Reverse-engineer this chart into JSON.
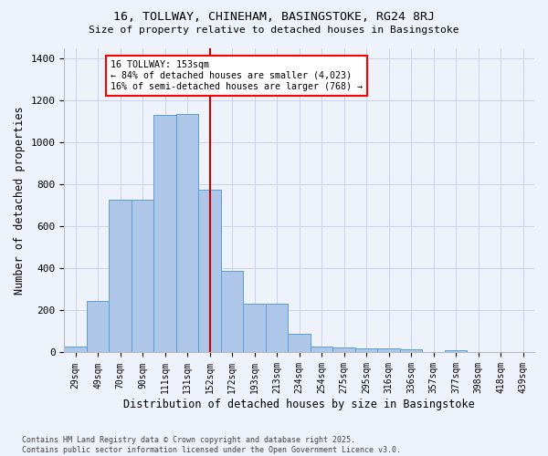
{
  "title1": "16, TOLLWAY, CHINEHAM, BASINGSTOKE, RG24 8RJ",
  "title2": "Size of property relative to detached houses in Basingstoke",
  "xlabel": "Distribution of detached houses by size in Basingstoke",
  "ylabel": "Number of detached properties",
  "footer1": "Contains HM Land Registry data © Crown copyright and database right 2025.",
  "footer2": "Contains public sector information licensed under the Open Government Licence v3.0.",
  "annotation_title": "16 TOLLWAY: 153sqm",
  "annotation_line1": "← 84% of detached houses are smaller (4,023)",
  "annotation_line2": "16% of semi-detached houses are larger (768) →",
  "bar_labels": [
    "29sqm",
    "49sqm",
    "70sqm",
    "90sqm",
    "111sqm",
    "131sqm",
    "152sqm",
    "172sqm",
    "193sqm",
    "213sqm",
    "234sqm",
    "254sqm",
    "275sqm",
    "295sqm",
    "316sqm",
    "336sqm",
    "357sqm",
    "377sqm",
    "398sqm",
    "418sqm",
    "439sqm"
  ],
  "bar_values": [
    30,
    245,
    725,
    725,
    1130,
    1135,
    775,
    390,
    230,
    230,
    90,
    30,
    25,
    20,
    20,
    15,
    0,
    10,
    0,
    0,
    0
  ],
  "bar_color": "#aec6e8",
  "bar_edge_color": "#5a9fd4",
  "vline_color": "#cc0000",
  "background_color": "#eef2fb",
  "grid_color": "#c8d4e8",
  "ylim": [
    0,
    1450
  ],
  "yticks": [
    0,
    200,
    400,
    600,
    800,
    1000,
    1200,
    1400
  ],
  "vline_x": 6.0
}
